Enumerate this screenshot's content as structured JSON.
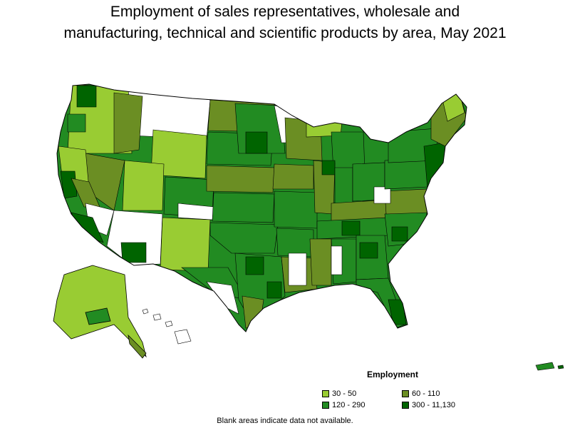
{
  "title_line1": "Employment of sales representatives, wholesale and",
  "title_line2": "manufacturing, technical and scientific products by area, May 2021",
  "legend": {
    "title": "Employment",
    "items": [
      {
        "label": "30 - 50",
        "color": "#99cc33"
      },
      {
        "label": "60 - 110",
        "color": "#6b8e23"
      },
      {
        "label": "120 - 290",
        "color": "#228b22"
      },
      {
        "label": "300 - 11,130",
        "color": "#006400"
      }
    ]
  },
  "footnote": "Blank areas indicate data not available."
}
